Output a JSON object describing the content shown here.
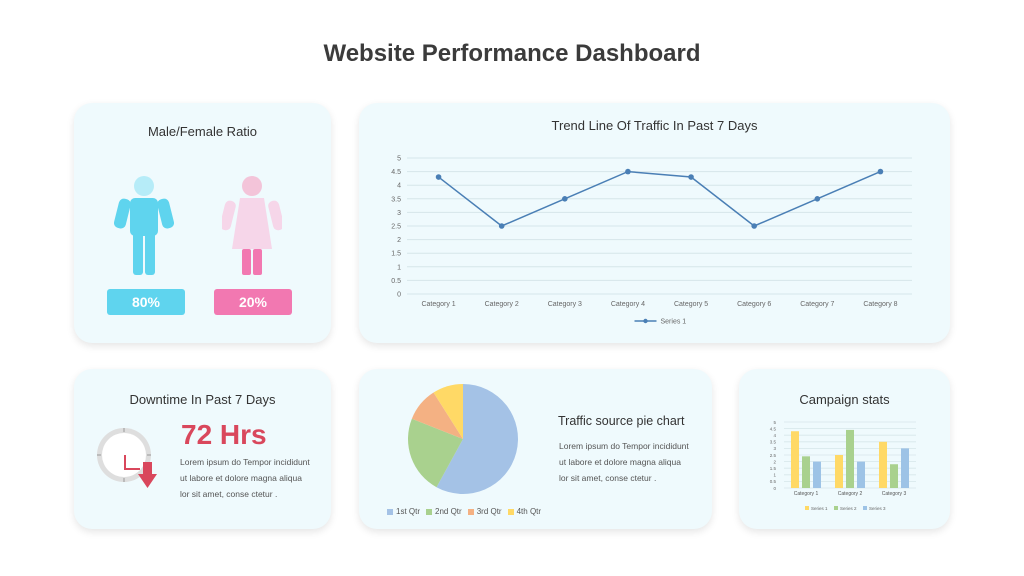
{
  "page": {
    "title": "Website Performance Dashboard"
  },
  "ratio": {
    "title": "Male/Female Ratio",
    "male_pct": "80%",
    "female_pct": "20%",
    "colors": {
      "male": "#5fd4ee",
      "male_head": "#b6ecf8",
      "female": "#f6d6e9",
      "female_head": "#f3c4d9",
      "female_legs": "#f278b1"
    }
  },
  "trend": {
    "title": "Trend Line Of Traffic In Past 7 Days",
    "legend": "Series 1",
    "color": "#4a7fb5"
  },
  "downtime": {
    "title": "Downtime In Past 7 Days",
    "value": "72 Hrs",
    "text_1": "Lorem ipsum do Tempor incididunt",
    "text_2": "ut labore et dolore magna aliqua",
    "text_3": "lor sit amet, conse ctetur .",
    "icon": "clock-down-arrow-icon"
  },
  "pie": {
    "title": "Traffic source pie chart",
    "text_1": "Lorem ipsum do Tempor incididunt",
    "text_2": "ut labore et dolore magna aliqua",
    "text_3": "lor sit amet, conse ctetur ."
  },
  "campaign": {
    "title": "Campaign stats"
  },
  "chart_data": [
    {
      "type": "line",
      "title": "Trend Line Of Traffic In Past 7 Days",
      "categories": [
        "Category 1",
        "Category 2",
        "Category 3",
        "Category 4",
        "Category 5",
        "Category 6",
        "Category 7",
        "Category 8"
      ],
      "series": [
        {
          "name": "Series 1",
          "values": [
            4.3,
            2.5,
            3.5,
            4.5,
            4.3,
            2.5,
            3.5,
            4.5
          ],
          "color": "#4a7fb5"
        }
      ],
      "ylim": [
        0,
        5
      ],
      "yticks": [
        "0",
        "0.5",
        "1",
        "1.5",
        "2",
        "2.5",
        "3",
        "3.5",
        "4",
        "4.5",
        "5"
      ],
      "grid": true,
      "legend": "bottom"
    },
    {
      "type": "pie",
      "labels": [
        "1st Qtr",
        "2nd Qtr",
        "3rd Qtr",
        "4th Qtr"
      ],
      "values": [
        58,
        23,
        10,
        9
      ],
      "colors": [
        "#a4c2e6",
        "#a9d18e",
        "#f4b183",
        "#ffd966"
      ],
      "legend": "bottom"
    },
    {
      "type": "bar",
      "title": "Campaign stats",
      "categories": [
        "Category 1",
        "Category 2",
        "Category 3"
      ],
      "series": [
        {
          "name": "Series 1",
          "values": [
            4.3,
            2.5,
            3.5
          ],
          "color": "#ffd966"
        },
        {
          "name": "Series 2",
          "values": [
            2.4,
            4.4,
            1.8
          ],
          "color": "#a9d18e"
        },
        {
          "name": "Series 3",
          "values": [
            2.0,
            2.0,
            3.0
          ],
          "color": "#9dc3e6"
        }
      ],
      "ylim": [
        0,
        5
      ],
      "yticks": [
        "0",
        "0.5",
        "1",
        "1.5",
        "2",
        "2.5",
        "3",
        "3.5",
        "4",
        "4.5",
        "5"
      ],
      "grid": true,
      "legend": "bottom"
    }
  ]
}
